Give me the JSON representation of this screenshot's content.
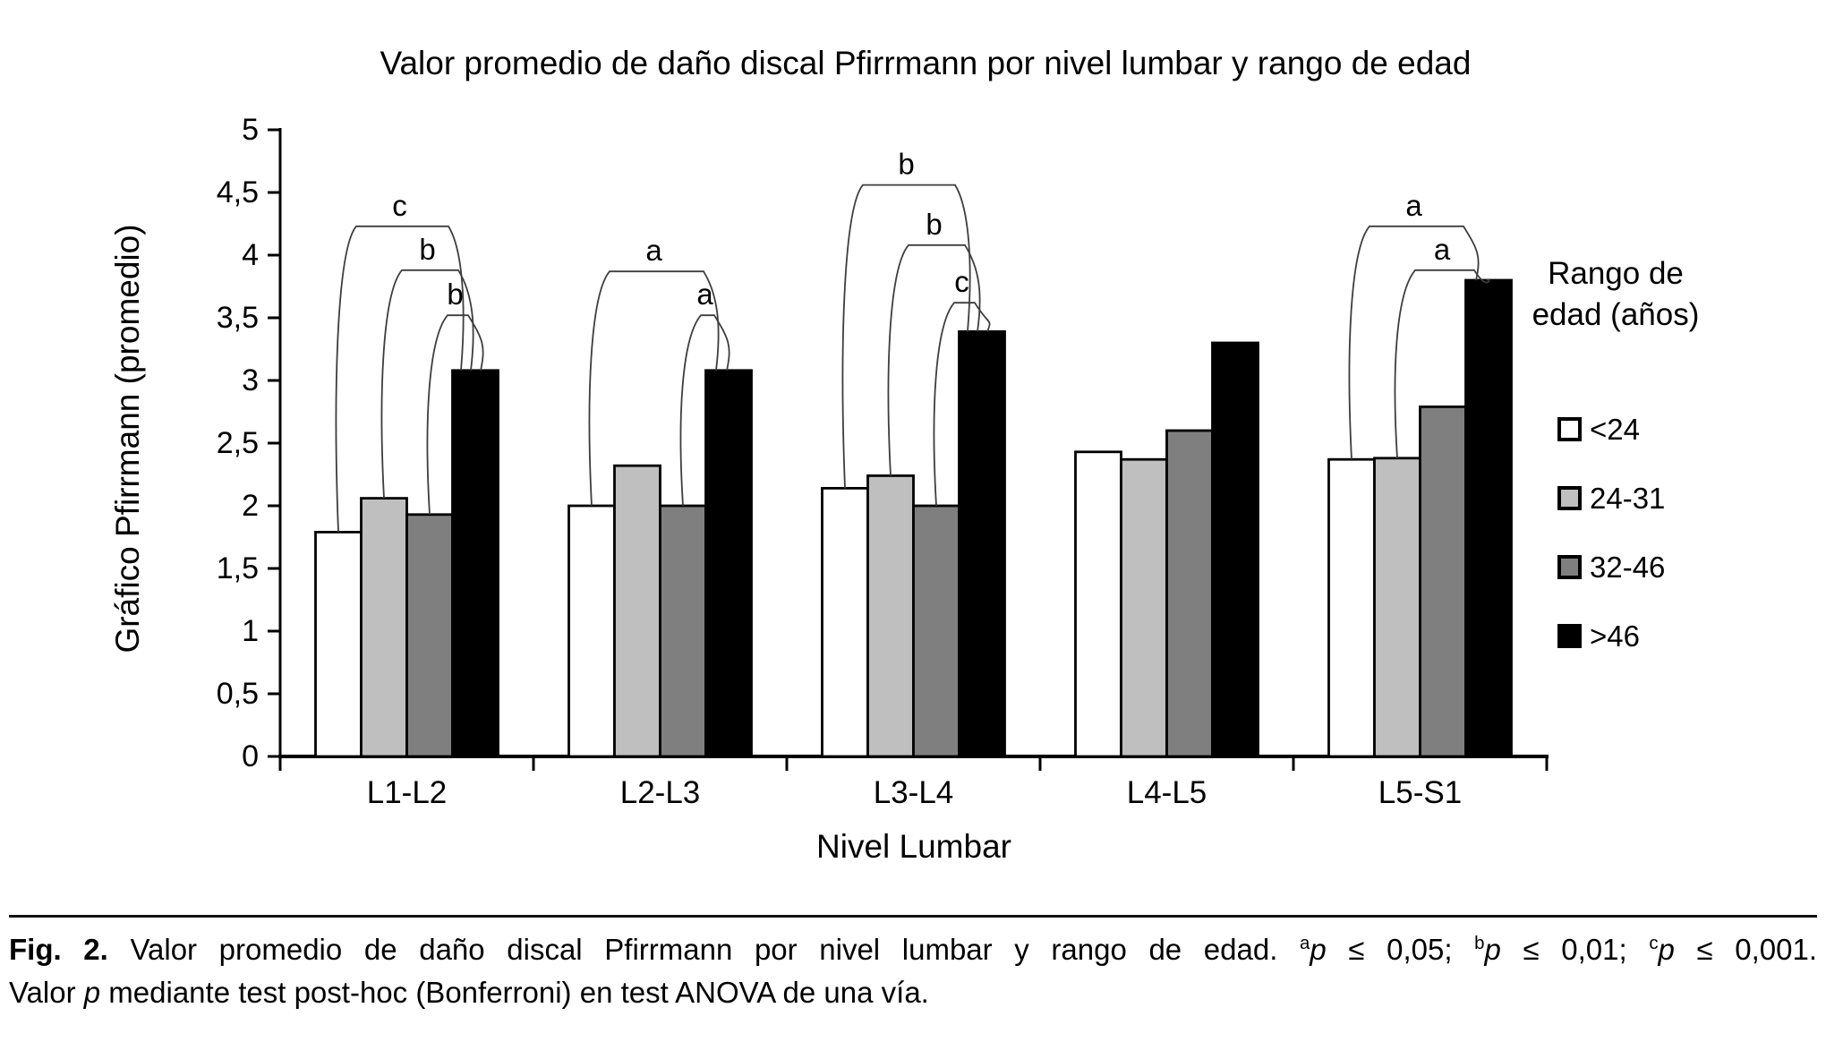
{
  "chart_data": {
    "type": "bar",
    "title": "Valor promedio de daño discal Pfirrmann por nivel lumbar y rango de edad",
    "xlabel": "Nivel Lumbar",
    "ylabel": "Gráfico Pfirrmann (promedio)",
    "ylim": [
      0,
      5
    ],
    "ytick_step": 0.5,
    "ytick_labels": [
      "0",
      "0,5",
      "1",
      "1,5",
      "2",
      "2,5",
      "3",
      "3,5",
      "4",
      "4,5",
      "5"
    ],
    "grid": false,
    "legend_position": "right",
    "legend_title": "Rango de edad (años)",
    "categories": [
      "L1-L2",
      "L2-L3",
      "L3-L4",
      "L4-L5",
      "L5-S1"
    ],
    "series": [
      {
        "name": "<24",
        "color": "#ffffff",
        "values": [
          1.79,
          2.0,
          2.14,
          2.43,
          2.37
        ]
      },
      {
        "name": "24-31",
        "color": "#bfbfbf",
        "values": [
          2.06,
          2.32,
          2.24,
          2.37,
          2.38
        ]
      },
      {
        "name": "32-46",
        "color": "#7f7f7f",
        "values": [
          1.93,
          2.0,
          2.0,
          2.6,
          2.79
        ]
      },
      {
        "name": ">46",
        "color": "#000000",
        "values": [
          3.08,
          3.08,
          3.39,
          3.3,
          3.8
        ]
      }
    ],
    "significance_brackets": [
      {
        "category": "L1-L2",
        "from_series": 0,
        "to_series": 3,
        "height": 4.23,
        "label": "c"
      },
      {
        "category": "L1-L2",
        "from_series": 1,
        "to_series": 3,
        "height": 3.88,
        "label": "b"
      },
      {
        "category": "L1-L2",
        "from_series": 2,
        "to_series": 3,
        "height": 3.52,
        "label": "b"
      },
      {
        "category": "L2-L3",
        "from_series": 0,
        "to_series": 3,
        "height": 3.87,
        "label": "a"
      },
      {
        "category": "L2-L3",
        "from_series": 2,
        "to_series": 3,
        "height": 3.52,
        "label": "a"
      },
      {
        "category": "L3-L4",
        "from_series": 0,
        "to_series": 3,
        "height": 4.56,
        "label": "b"
      },
      {
        "category": "L3-L4",
        "from_series": 1,
        "to_series": 3,
        "height": 4.08,
        "label": "b"
      },
      {
        "category": "L3-L4",
        "from_series": 2,
        "to_series": 3,
        "height": 3.62,
        "label": "c"
      },
      {
        "category": "L5-S1",
        "from_series": 0,
        "to_series": 3,
        "height": 4.23,
        "label": "a"
      },
      {
        "category": "L5-S1",
        "from_series": 1,
        "to_series": 3,
        "height": 3.88,
        "label": "a"
      }
    ]
  },
  "caption": {
    "fig_label": "Fig. 2.",
    "line1": " Valor promedio de daño discal Pfirrmann por nivel lumbar y rango de edad. ",
    "sig1_sup": "a",
    "sig1_p": "p",
    "sig1_rest": " ≤ 0,05; ",
    "sig2_sup": "b",
    "sig2_p": "p",
    "sig2_rest": " ≤ 0,01; ",
    "sig3_sup": "c",
    "sig3_p": "p",
    "sig3_rest": " ≤ 0,001.",
    "line2_pre": "Valor ",
    "line2_p": "p",
    "line2_post": " mediante test post-hoc (Bonferroni) en test ANOVA de una vía."
  }
}
